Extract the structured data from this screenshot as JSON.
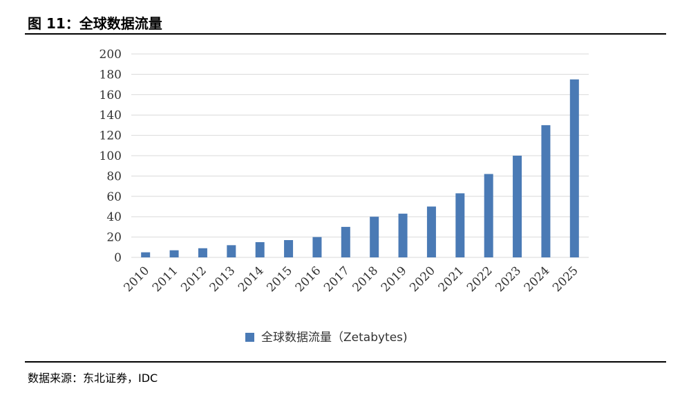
{
  "figure_title": "图 11：全球数据流量",
  "source": "数据来源：东北证券，IDC",
  "colors": {
    "bar": "#4a7ab5",
    "grid": "#d9d9d9",
    "text": "#333333"
  },
  "chart_data": {
    "type": "bar",
    "title": "",
    "xlabel": "",
    "ylabel": "",
    "categories": [
      "2010",
      "2011",
      "2012",
      "2013",
      "2014",
      "2015",
      "2016",
      "2017",
      "2018",
      "2019",
      "2020",
      "2021",
      "2022",
      "2023",
      "2024",
      "2025"
    ],
    "series": [
      {
        "name": "全球数据流量（Zetabytes)",
        "values": [
          5,
          7,
          9,
          12,
          15,
          17,
          20,
          30,
          40,
          43,
          50,
          63,
          82,
          100,
          130,
          175
        ]
      }
    ],
    "ylim": [
      0,
      200
    ],
    "yticks": [
      0,
      20,
      40,
      60,
      80,
      100,
      120,
      140,
      160,
      180,
      200
    ],
    "grid": true,
    "legend": "bottom"
  }
}
